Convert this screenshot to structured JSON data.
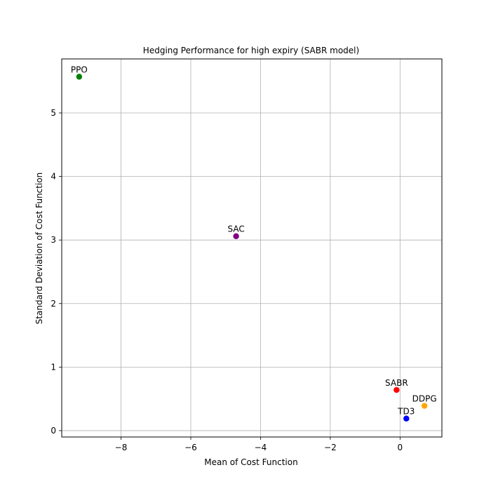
{
  "chart_data": {
    "type": "scatter",
    "title": "Hedging Performance for high expiry (SABR model)",
    "xlabel": "Mean of Cost Function",
    "ylabel": "Standard Deviation of Cost Function",
    "xlim": [
      -9.7,
      1.2
    ],
    "ylim": [
      -0.1,
      5.85
    ],
    "xticks": [
      -8,
      -6,
      -4,
      -2,
      0
    ],
    "xtick_labels": [
      "−8",
      "−6",
      "−4",
      "−2",
      "0"
    ],
    "yticks": [
      0,
      1,
      2,
      3,
      4,
      5
    ],
    "ytick_labels": [
      "0",
      "1",
      "2",
      "3",
      "4",
      "5"
    ],
    "grid": true,
    "points": [
      {
        "label": "PPO",
        "x": -9.2,
        "y": 5.57,
        "color": "#008000"
      },
      {
        "label": "SAC",
        "x": -4.7,
        "y": 3.06,
        "color": "#800080"
      },
      {
        "label": "SABR",
        "x": -0.1,
        "y": 0.64,
        "color": "#ff0000"
      },
      {
        "label": "DDPG",
        "x": 0.7,
        "y": 0.39,
        "color": "#ffa500"
      },
      {
        "label": "TD3",
        "x": 0.18,
        "y": 0.19,
        "color": "#0000ff"
      }
    ]
  }
}
